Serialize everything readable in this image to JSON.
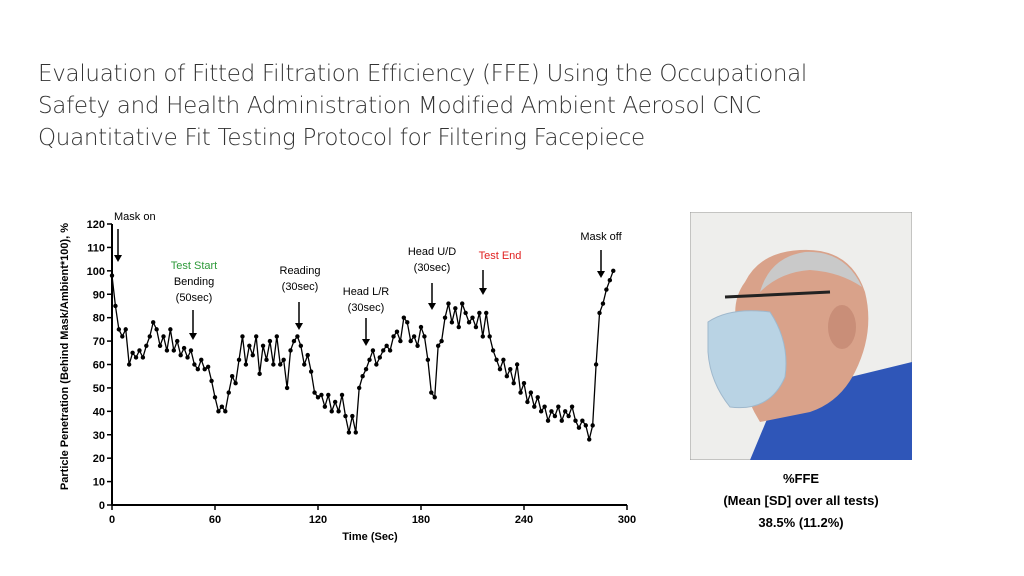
{
  "slide": {
    "title_lines": [
      "Evaluation of Fitted Filtration Efficiency (FFE) Using the Occupational",
      "Safety and Health Administration Modified Ambient Aerosol CNC",
      "Quantitative Fit Testing Protocol for Filtering Facepiece"
    ],
    "caption": [
      "%FFE",
      "(Mean [SD] over all tests)",
      "38.5% (11.2%)"
    ]
  },
  "chart_data": {
    "type": "line",
    "ylabel": "Particle Penetration (Behind Mask/Ambient*100), %",
    "xlabel": "Time (Sec)",
    "xlim": [
      0,
      300
    ],
    "xticks": [
      0,
      60,
      120,
      180,
      240,
      300
    ],
    "ylim": [
      0,
      120
    ],
    "yticks": [
      0,
      10,
      20,
      30,
      40,
      50,
      60,
      70,
      80,
      90,
      100,
      110,
      120
    ],
    "annotations": [
      {
        "lines": [
          "Mask on"
        ],
        "color": "#000000"
      },
      {
        "lines": [
          "Test Start"
        ],
        "color": "#2e9a3a"
      },
      {
        "lines": [
          "Bending",
          "(50sec)"
        ],
        "color": "#000000"
      },
      {
        "lines": [
          "Reading",
          "(30sec)"
        ],
        "color": "#000000"
      },
      {
        "lines": [
          "Head L/R",
          "(30sec)"
        ],
        "color": "#000000"
      },
      {
        "lines": [
          "Head U/D",
          "(30sec)"
        ],
        "color": "#000000"
      },
      {
        "lines": [
          "Test End"
        ],
        "color": "#e02020"
      },
      {
        "lines": [
          "Mask off"
        ],
        "color": "#000000"
      }
    ],
    "x": [
      0,
      2,
      4,
      6,
      8,
      10,
      12,
      14,
      16,
      18,
      20,
      22,
      24,
      26,
      28,
      30,
      32,
      34,
      36,
      38,
      40,
      42,
      44,
      46,
      48,
      50,
      52,
      54,
      56,
      58,
      60,
      62,
      64,
      66,
      68,
      70,
      72,
      74,
      76,
      78,
      80,
      82,
      84,
      86,
      88,
      90,
      92,
      94,
      96,
      98,
      100,
      102,
      104,
      106,
      108,
      110,
      112,
      114,
      116,
      118,
      120,
      122,
      124,
      126,
      128,
      130,
      132,
      134,
      136,
      138,
      140,
      142,
      144,
      146,
      148,
      150,
      152,
      154,
      156,
      158,
      160,
      162,
      164,
      166,
      168,
      170,
      172,
      174,
      176,
      178,
      180,
      182,
      184,
      186,
      188,
      190,
      192,
      194,
      196,
      198,
      200,
      202,
      204,
      206,
      208,
      210,
      212,
      214,
      216,
      218,
      220,
      222,
      224,
      226,
      228,
      230,
      232,
      234,
      236,
      238,
      240,
      242,
      244,
      246,
      248,
      250,
      252,
      254,
      256,
      258,
      260,
      262,
      264,
      266,
      268,
      270,
      272,
      274,
      276,
      278,
      280,
      282,
      284,
      286,
      288,
      290,
      292
    ],
    "series": [
      {
        "color": "#000000",
        "values": [
          98,
          85,
          75,
          72,
          75,
          60,
          65,
          63,
          66,
          63,
          68,
          72,
          78,
          75,
          68,
          72,
          66,
          75,
          66,
          70,
          64,
          67,
          63,
          66,
          60,
          58,
          62,
          58,
          59,
          53,
          46,
          40,
          42,
          40,
          48,
          55,
          52,
          62,
          72,
          60,
          68,
          64,
          72,
          56,
          68,
          62,
          70,
          60,
          72,
          60,
          62,
          50,
          66,
          70,
          72,
          68,
          60,
          64,
          57,
          48,
          46,
          47,
          42,
          47,
          40,
          44,
          40,
          47,
          38,
          31,
          38,
          31,
          50,
          55,
          58,
          62,
          66,
          60,
          63,
          66,
          68,
          66,
          72,
          74,
          70,
          80,
          78,
          70,
          72,
          68,
          76,
          72,
          62,
          48,
          46,
          68,
          70,
          80,
          86,
          78,
          84,
          76,
          86,
          82,
          78,
          80,
          76,
          82,
          72,
          82,
          72,
          66,
          62,
          58,
          62,
          55,
          58,
          52,
          60,
          48,
          52,
          44,
          48,
          42,
          46,
          40,
          42,
          36,
          40,
          38,
          42,
          36,
          40,
          38,
          42,
          36,
          33,
          36,
          34,
          28,
          34,
          60,
          82,
          86,
          92,
          96,
          100
        ]
      }
    ]
  }
}
